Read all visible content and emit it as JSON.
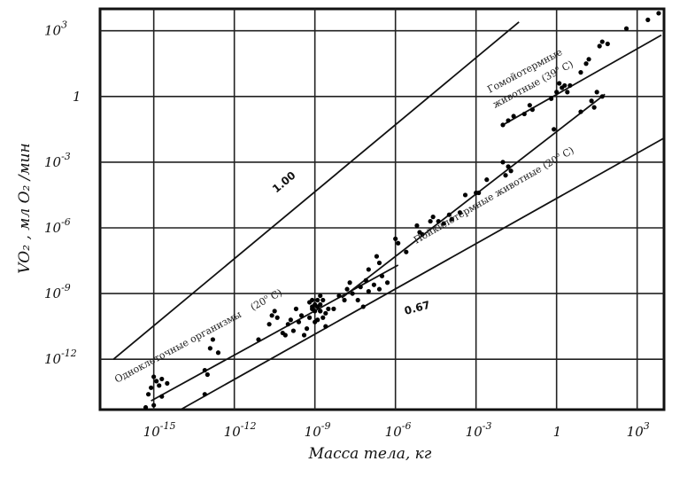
{
  "chart_data": {
    "type": "scatter",
    "title": "",
    "xlabel": "Масса тела, кг",
    "ylabel": "VO₂ , мл O₂ /мин",
    "x_scale": "log10",
    "y_scale": "log10",
    "xlim_log10": [
      -17,
      4
    ],
    "ylim_log10": [
      -14.3,
      4
    ],
    "grid": true,
    "x_ticks": [
      {
        "log": -15,
        "base": "10",
        "exp": "-15"
      },
      {
        "log": -12,
        "base": "10",
        "exp": "-12"
      },
      {
        "log": -9,
        "base": "10",
        "exp": "-9"
      },
      {
        "log": -6,
        "base": "10",
        "exp": "-6"
      },
      {
        "log": -3,
        "base": "10",
        "exp": "-3"
      },
      {
        "log": 0,
        "base": "1",
        "exp": ""
      },
      {
        "log": 3,
        "base": "10",
        "exp": "3"
      }
    ],
    "y_ticks": [
      {
        "log": 3,
        "base": "10",
        "exp": "3"
      },
      {
        "log": 0,
        "base": "1",
        "exp": ""
      },
      {
        "log": -3,
        "base": "10",
        "exp": "-3"
      },
      {
        "log": -6,
        "base": "10",
        "exp": "-6"
      },
      {
        "log": -9,
        "base": "10",
        "exp": "-9"
      },
      {
        "log": -12,
        "base": "10",
        "exp": "-12"
      }
    ],
    "reference_lines": [
      {
        "label": "1.00",
        "x1": -16.5,
        "y1": -12.0,
        "x2": -1.4,
        "y2": 3.4
      },
      {
        "label": "0.67",
        "x1": -14.0,
        "y1": -14.3,
        "x2": 4.0,
        "y2": -1.9
      }
    ],
    "fit_lines": [
      {
        "group": "unicellular",
        "x1": -15.1,
        "y1": -13.9,
        "x2": -5.9,
        "y2": -7.7
      },
      {
        "group": "poikilotherm",
        "x1": -8.0,
        "y1": -9.2,
        "x2": 1.8,
        "y2": 0.1
      },
      {
        "group": "homeotherm",
        "x1": -2.0,
        "y1": -1.3,
        "x2": 3.9,
        "y2": 2.8
      }
    ],
    "series": [
      {
        "name": "Одноклеточные организмы (20° C)",
        "label_parts": [
          "Одноклеточные организмы",
          "20",
          "о",
          " C)"
        ],
        "points": [
          [
            -15.1,
            -13.3
          ],
          [
            -14.9,
            -13.0
          ],
          [
            -15.0,
            -12.8
          ],
          [
            -14.8,
            -13.2
          ],
          [
            -15.2,
            -13.6
          ],
          [
            -14.7,
            -13.7
          ],
          [
            -15.3,
            -14.2
          ],
          [
            -15.0,
            -14.1
          ],
          [
            -14.7,
            -12.9
          ],
          [
            -14.5,
            -13.1
          ],
          [
            -13.1,
            -12.5
          ],
          [
            -13.0,
            -12.7
          ],
          [
            -13.1,
            -13.6
          ],
          [
            -12.9,
            -11.5
          ],
          [
            -12.8,
            -11.1
          ],
          [
            -12.6,
            -11.7
          ],
          [
            -11.1,
            -11.1
          ],
          [
            -10.7,
            -10.4
          ],
          [
            -10.6,
            -10.0
          ],
          [
            -10.5,
            -9.8
          ],
          [
            -10.4,
            -10.1
          ],
          [
            -10.2,
            -10.8
          ],
          [
            -10.1,
            -10.9
          ],
          [
            -10.0,
            -10.4
          ],
          [
            -9.9,
            -10.2
          ],
          [
            -9.8,
            -10.7
          ],
          [
            -9.7,
            -9.7
          ],
          [
            -9.6,
            -10.3
          ],
          [
            -9.5,
            -10.0
          ],
          [
            -9.4,
            -10.9
          ],
          [
            -9.3,
            -10.6
          ],
          [
            -9.2,
            -10.1
          ],
          [
            -9.1,
            -9.6
          ],
          [
            -9.0,
            -10.3
          ],
          [
            -8.9,
            -10.2
          ],
          [
            -8.8,
            -9.8
          ],
          [
            -8.7,
            -10.1
          ],
          [
            -8.6,
            -10.5
          ],
          [
            -8.5,
            -9.7
          ],
          [
            -9.2,
            -9.4
          ],
          [
            -9.1,
            -9.7
          ],
          [
            -9.0,
            -9.5
          ],
          [
            -8.9,
            -9.3
          ],
          [
            -8.8,
            -9.5
          ],
          [
            -8.7,
            -9.3
          ],
          [
            -8.8,
            -9.8
          ],
          [
            -9.0,
            -9.8
          ],
          [
            -8.9,
            -9.6
          ],
          [
            -8.6,
            -9.9
          ],
          [
            -8.8,
            -9.1
          ],
          [
            -9.1,
            -9.3
          ],
          [
            -8.3,
            -9.7
          ],
          [
            -8.1,
            -9.1
          ],
          [
            -7.9,
            -9.3
          ],
          [
            -7.8,
            -8.8
          ],
          [
            -7.6,
            -9.0
          ],
          [
            -7.4,
            -9.3
          ],
          [
            -7.3,
            -8.7
          ],
          [
            -7.1,
            -8.4
          ],
          [
            -7.0,
            -8.9
          ],
          [
            -6.8,
            -8.6
          ],
          [
            -6.6,
            -8.8
          ],
          [
            -6.3,
            -8.5
          ],
          [
            -7.7,
            -8.5
          ],
          [
            -6.5,
            -8.2
          ],
          [
            -7.2,
            -9.6
          ]
        ]
      },
      {
        "name": "Пойкилотермные животные (20° C)",
        "label_parts": [
          "Пойкилотермные животные ",
          "20",
          "о",
          " C)"
        ],
        "points": [
          [
            -7.0,
            -7.9
          ],
          [
            -6.7,
            -7.3
          ],
          [
            -6.6,
            -7.6
          ],
          [
            -6.0,
            -6.5
          ],
          [
            -5.9,
            -6.7
          ],
          [
            -5.6,
            -7.1
          ],
          [
            -5.2,
            -5.9
          ],
          [
            -5.1,
            -6.2
          ],
          [
            -5.0,
            -6.3
          ],
          [
            -4.7,
            -5.7
          ],
          [
            -4.6,
            -5.5
          ],
          [
            -4.4,
            -5.7
          ],
          [
            -4.2,
            -5.8
          ],
          [
            -4.0,
            -5.4
          ],
          [
            -3.9,
            -5.6
          ],
          [
            -3.6,
            -5.3
          ],
          [
            -3.4,
            -4.5
          ],
          [
            -3.0,
            -4.4
          ],
          [
            -2.9,
            -4.4
          ],
          [
            -2.6,
            -3.8
          ],
          [
            -2.0,
            -3.0
          ],
          [
            -1.9,
            -3.6
          ],
          [
            -1.8,
            -3.2
          ],
          [
            -1.7,
            -3.4
          ],
          [
            -0.1,
            -1.5
          ],
          [
            0.9,
            -0.7
          ],
          [
            1.3,
            -0.2
          ],
          [
            1.5,
            0.2
          ],
          [
            1.7,
            0.0
          ],
          [
            1.4,
            -0.5
          ]
        ]
      },
      {
        "name": "Гомойотермные животные (39° C)",
        "label_parts": [
          "Гомойотермные",
          "животные (39",
          "о",
          " C)"
        ],
        "points": [
          [
            -2.0,
            -1.3
          ],
          [
            -1.8,
            -1.1
          ],
          [
            -1.6,
            -0.9
          ],
          [
            -1.2,
            -0.8
          ],
          [
            -1.0,
            -0.4
          ],
          [
            -0.9,
            -0.6
          ],
          [
            -0.2,
            -0.1
          ],
          [
            0.0,
            0.2
          ],
          [
            0.1,
            0.6
          ],
          [
            0.2,
            0.4
          ],
          [
            0.3,
            0.5
          ],
          [
            0.4,
            0.2
          ],
          [
            0.5,
            0.5
          ],
          [
            0.9,
            1.1
          ],
          [
            1.1,
            1.5
          ],
          [
            1.2,
            1.7
          ],
          [
            1.6,
            2.3
          ],
          [
            1.7,
            2.5
          ],
          [
            1.9,
            2.4
          ],
          [
            2.6,
            3.1
          ],
          [
            3.4,
            3.5
          ],
          [
            3.8,
            3.8
          ]
        ]
      }
    ]
  }
}
